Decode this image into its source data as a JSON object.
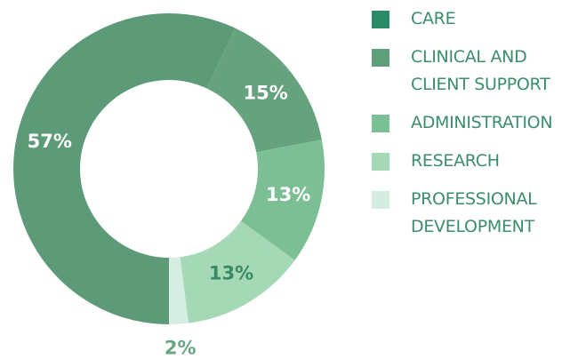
{
  "chart_data": {
    "type": "donut",
    "categories": [
      "CARE",
      "CLINICAL AND\nCLIENT SUPPORT",
      "ADMINISTRATION",
      "RESEARCH",
      "PROFESSIONAL\nDEVELOPMENT"
    ],
    "values": [
      57,
      15,
      13,
      13,
      2
    ],
    "value_labels": [
      "57%",
      "15%",
      "13%",
      "13%",
      "2%"
    ],
    "colors": [
      "#5d9b78",
      "#66a27e",
      "#7cbf94",
      "#a5d8b5",
      "#d6ede2"
    ],
    "legend_colors": [
      "#2b8a68",
      "#5e9e7a",
      "#7bbf94",
      "#a6d9b6",
      "#d5ece0"
    ],
    "label_colors": [
      "#ffffff",
      "#ffffff",
      "#ffffff",
      "#3a8a66",
      "#6aa583"
    ],
    "legend": "right"
  }
}
